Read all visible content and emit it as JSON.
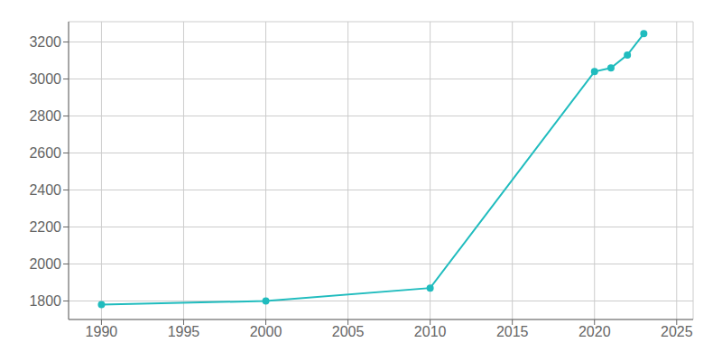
{
  "chart_data": {
    "type": "line",
    "x": [
      1990,
      2000,
      2010,
      2020,
      2021,
      2022,
      2023
    ],
    "values": [
      1780,
      1800,
      1870,
      3040,
      3060,
      3130,
      3245
    ],
    "color": "#20BCBE",
    "marker": "circle",
    "xlim": [
      1988,
      2026
    ],
    "ylim": [
      1700,
      3310
    ],
    "xticks": [
      1990,
      1995,
      2000,
      2005,
      2010,
      2015,
      2020,
      2025
    ],
    "yticks": [
      1800,
      2000,
      2200,
      2400,
      2600,
      2800,
      3000,
      3200
    ],
    "grid": true
  }
}
